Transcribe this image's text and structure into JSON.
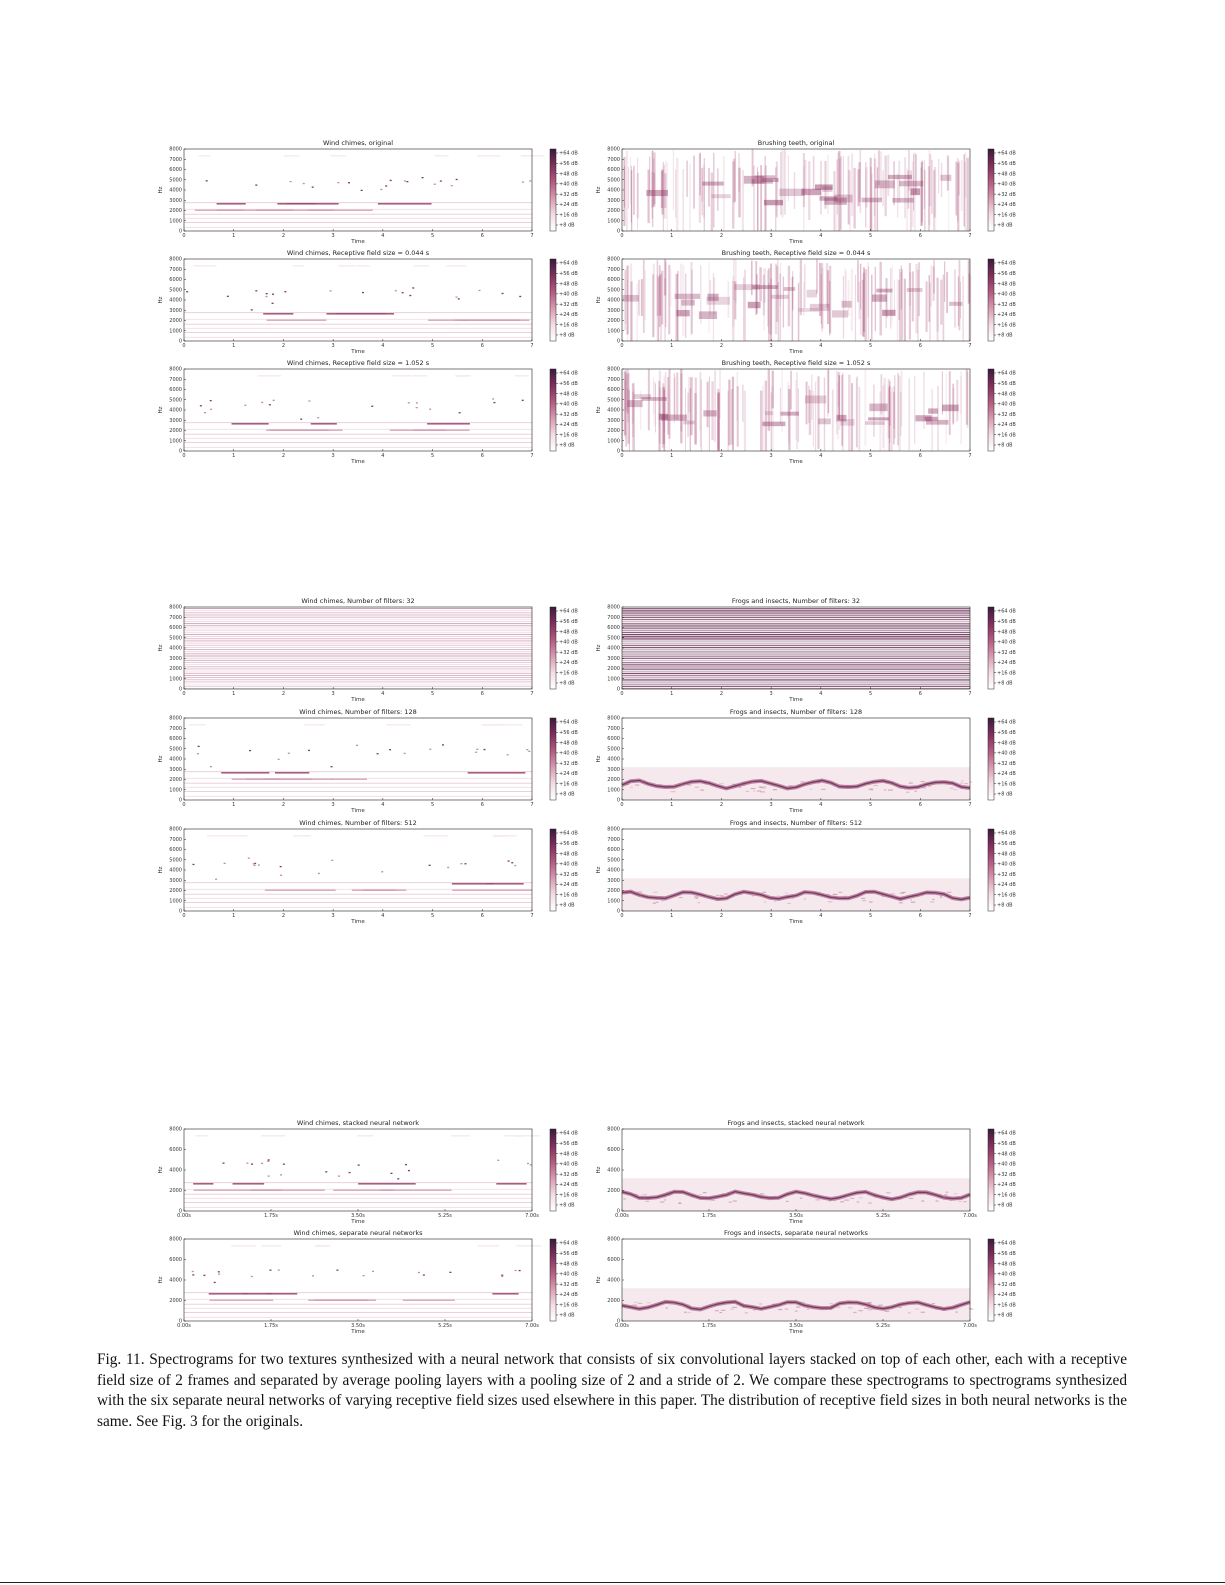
{
  "colorbar": {
    "ticks": [
      "+64 dB",
      "+56 dB",
      "+48 dB",
      "+40 dB",
      "+32 dB",
      "+24 dB",
      "+16 dB",
      "+8 dB"
    ],
    "colors": [
      "#ffffff",
      "#f3dde4",
      "#d79ab0",
      "#b25a7f",
      "#7e2f5c",
      "#3c1a3c"
    ]
  },
  "caption": "Fig. 11.   Spectrograms for two textures synthesized with a neural network that consists of six convolutional layers stacked on top of each other, each with a receptive field size of 2 frames and separated by average pooling layers with a pooling size of 2 and a stride of 2. We compare these spectrograms to spectrograms synthesized with the six separate neural networks of varying receptive field sizes used elsewhere in this paper. The distribution of receptive field sizes in both neural networks is the same. See Fig. 3 for the originals.",
  "chart_data": [
    {
      "type": "heatmap",
      "title": "Wind chimes, original",
      "xlabel": "Time",
      "ylabel": "Hz",
      "xticks": [
        "0",
        "1",
        "2",
        "3",
        "4",
        "5",
        "6",
        "7"
      ],
      "yticks": [
        "0",
        "1000",
        "2000",
        "3000",
        "4000",
        "5000",
        "6000",
        "7000",
        "8000"
      ],
      "xlim": [
        0,
        7
      ],
      "ylim": [
        0,
        8000
      ],
      "texture": "chimes",
      "variant": 0,
      "seed": 11
    },
    {
      "type": "heatmap",
      "title": "Brushing teeth, original",
      "xlabel": "Time",
      "ylabel": "Hz",
      "xticks": [
        "0",
        "1",
        "2",
        "3",
        "4",
        "5",
        "6",
        "7"
      ],
      "yticks": [
        "0",
        "1000",
        "2000",
        "3000",
        "4000",
        "5000",
        "6000",
        "7000",
        "8000"
      ],
      "xlim": [
        0,
        7
      ],
      "ylim": [
        0,
        8000
      ],
      "texture": "brushing",
      "variant": 0,
      "seed": 12
    },
    {
      "type": "heatmap",
      "title": "Wind chimes, Receptive field size = 0.044 s",
      "xlabel": "Time",
      "ylabel": "Hz",
      "xticks": [
        "0",
        "1",
        "2",
        "3",
        "4",
        "5",
        "6",
        "7"
      ],
      "yticks": [
        "0",
        "1000",
        "2000",
        "3000",
        "4000",
        "5000",
        "6000",
        "7000",
        "8000"
      ],
      "xlim": [
        0,
        7
      ],
      "ylim": [
        0,
        8000
      ],
      "texture": "chimes",
      "variant": 1,
      "seed": 21
    },
    {
      "type": "heatmap",
      "title": "Brushing teeth, Receptive field size = 0.044 s",
      "xlabel": "Time",
      "ylabel": "Hz",
      "xticks": [
        "0",
        "1",
        "2",
        "3",
        "4",
        "5",
        "6",
        "7"
      ],
      "yticks": [
        "0",
        "1000",
        "2000",
        "3000",
        "4000",
        "5000",
        "6000",
        "7000",
        "8000"
      ],
      "xlim": [
        0,
        7
      ],
      "ylim": [
        0,
        8000
      ],
      "texture": "brushing",
      "variant": 1,
      "seed": 22
    },
    {
      "type": "heatmap",
      "title": "Wind chimes, Receptive field size = 1.052 s",
      "xlabel": "Time",
      "ylabel": "Hz",
      "xticks": [
        "0",
        "1",
        "2",
        "3",
        "4",
        "5",
        "6",
        "7"
      ],
      "yticks": [
        "0",
        "1000",
        "2000",
        "3000",
        "4000",
        "5000",
        "6000",
        "7000",
        "8000"
      ],
      "xlim": [
        0,
        7
      ],
      "ylim": [
        0,
        8000
      ],
      "texture": "chimes",
      "variant": 2,
      "seed": 31
    },
    {
      "type": "heatmap",
      "title": "Brushing teeth, Receptive field size = 1.052 s",
      "xlabel": "Time",
      "ylabel": "Hz",
      "xticks": [
        "0",
        "1",
        "2",
        "3",
        "4",
        "5",
        "6",
        "7"
      ],
      "yticks": [
        "0",
        "1000",
        "2000",
        "3000",
        "4000",
        "5000",
        "6000",
        "7000",
        "8000"
      ],
      "xlim": [
        0,
        7
      ],
      "ylim": [
        0,
        8000
      ],
      "texture": "brushing",
      "variant": 2,
      "seed": 32
    },
    {
      "type": "heatmap",
      "title": "Wind chimes, Number of filters: 32",
      "xlabel": "Time",
      "ylabel": "Hz",
      "xticks": [
        "0",
        "1",
        "2",
        "3",
        "4",
        "5",
        "6",
        "7"
      ],
      "yticks": [
        "0",
        "1000",
        "2000",
        "3000",
        "4000",
        "5000",
        "6000",
        "7000",
        "8000"
      ],
      "xlim": [
        0,
        7
      ],
      "ylim": [
        0,
        8000
      ],
      "texture": "noise-light",
      "variant": 0,
      "seed": 41
    },
    {
      "type": "heatmap",
      "title": "Frogs and insects, Number of filters: 32",
      "xlabel": "Time",
      "ylabel": "Hz",
      "xticks": [
        "0",
        "1",
        "2",
        "3",
        "4",
        "5",
        "6",
        "7"
      ],
      "yticks": [
        "0",
        "1000",
        "2000",
        "3000",
        "4000",
        "5000",
        "6000",
        "7000",
        "8000"
      ],
      "xlim": [
        0,
        7
      ],
      "ylim": [
        0,
        8000
      ],
      "texture": "noise-dark",
      "variant": 0,
      "seed": 42
    },
    {
      "type": "heatmap",
      "title": "Wind chimes, Number of filters: 128",
      "xlabel": "Time",
      "ylabel": "Hz",
      "xticks": [
        "0",
        "1",
        "2",
        "3",
        "4",
        "5",
        "6",
        "7"
      ],
      "yticks": [
        "0",
        "1000",
        "2000",
        "3000",
        "4000",
        "5000",
        "6000",
        "7000",
        "8000"
      ],
      "xlim": [
        0,
        7
      ],
      "ylim": [
        0,
        8000
      ],
      "texture": "chimes",
      "variant": 3,
      "seed": 51
    },
    {
      "type": "heatmap",
      "title": "Frogs and insects, Number of filters: 128",
      "xlabel": "Time",
      "ylabel": "Hz",
      "xticks": [
        "0",
        "1",
        "2",
        "3",
        "4",
        "5",
        "6",
        "7"
      ],
      "yticks": [
        "0",
        "1000",
        "2000",
        "3000",
        "4000",
        "5000",
        "6000",
        "7000",
        "8000"
      ],
      "xlim": [
        0,
        7
      ],
      "ylim": [
        0,
        8000
      ],
      "texture": "frogs",
      "variant": 0,
      "seed": 52
    },
    {
      "type": "heatmap",
      "title": "Wind chimes, Number of filters: 512",
      "xlabel": "Time",
      "ylabel": "Hz",
      "xticks": [
        "0",
        "1",
        "2",
        "3",
        "4",
        "5",
        "6",
        "7"
      ],
      "yticks": [
        "0",
        "1000",
        "2000",
        "3000",
        "4000",
        "5000",
        "6000",
        "7000",
        "8000"
      ],
      "xlim": [
        0,
        7
      ],
      "ylim": [
        0,
        8000
      ],
      "texture": "chimes",
      "variant": 4,
      "seed": 61
    },
    {
      "type": "heatmap",
      "title": "Frogs and insects, Number of filters: 512",
      "xlabel": "Time",
      "ylabel": "Hz",
      "xticks": [
        "0",
        "1",
        "2",
        "3",
        "4",
        "5",
        "6",
        "7"
      ],
      "yticks": [
        "0",
        "1000",
        "2000",
        "3000",
        "4000",
        "5000",
        "6000",
        "7000",
        "8000"
      ],
      "xlim": [
        0,
        7
      ],
      "ylim": [
        0,
        8000
      ],
      "texture": "frogs",
      "variant": 1,
      "seed": 62
    },
    {
      "type": "heatmap",
      "title": "Wind chimes, stacked neural network",
      "xlabel": "Time",
      "ylabel": "Hz",
      "xticks": [
        "0.00s",
        "1.75s",
        "3.50s",
        "5.25s",
        "7.00s"
      ],
      "yticks": [
        "0",
        "2000",
        "4000",
        "6000",
        "8000"
      ],
      "xlim": [
        0,
        7
      ],
      "ylim": [
        0,
        8000
      ],
      "texture": "chimes",
      "variant": 5,
      "seed": 71
    },
    {
      "type": "heatmap",
      "title": "Frogs and insects, stacked neural network",
      "xlabel": "Time",
      "ylabel": "Hz",
      "xticks": [
        "0.00s",
        "1.75s",
        "3.50s",
        "5.25s",
        "7.00s"
      ],
      "yticks": [
        "0",
        "2000",
        "4000",
        "6000",
        "8000"
      ],
      "xlim": [
        0,
        7
      ],
      "ylim": [
        0,
        8000
      ],
      "texture": "frogs",
      "variant": 2,
      "seed": 72
    },
    {
      "type": "heatmap",
      "title": "Wind chimes, separate neural networks",
      "xlabel": "Time",
      "ylabel": "Hz",
      "xticks": [
        "0.00s",
        "1.75s",
        "3.50s",
        "5.25s",
        "7.00s"
      ],
      "yticks": [
        "0",
        "2000",
        "4000",
        "6000",
        "8000"
      ],
      "xlim": [
        0,
        7
      ],
      "ylim": [
        0,
        8000
      ],
      "texture": "chimes",
      "variant": 6,
      "seed": 81
    },
    {
      "type": "heatmap",
      "title": "Frogs and insects, separate neural networks",
      "xlabel": "Time",
      "ylabel": "Hz",
      "xticks": [
        "0.00s",
        "1.75s",
        "3.50s",
        "5.25s",
        "7.00s"
      ],
      "yticks": [
        "0",
        "2000",
        "4000",
        "6000",
        "8000"
      ],
      "xlim": [
        0,
        7
      ],
      "ylim": [
        0,
        8000
      ],
      "texture": "frogs",
      "variant": 3,
      "seed": 82
    }
  ]
}
